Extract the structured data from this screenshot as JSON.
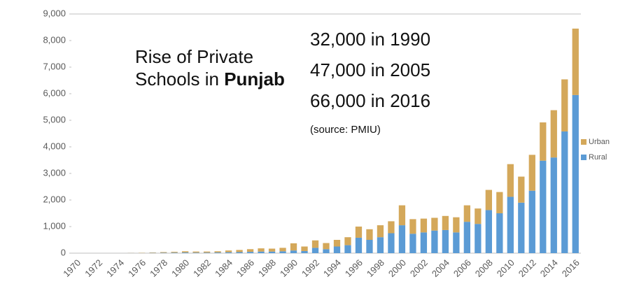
{
  "chart_data": {
    "type": "stacked_bar",
    "title": {
      "line1": "Rise of Private",
      "line2": "Schools in",
      "emphasis": "Punjab"
    },
    "annotations": [
      "32,000 in 1990",
      "47,000 in 2005",
      "66,000 in 2016",
      "(source: PMIU)"
    ],
    "categories": [
      "1970",
      null,
      "1972",
      null,
      "1974",
      null,
      "1976",
      null,
      "1978",
      null,
      "1980",
      null,
      "1982",
      null,
      "1984",
      null,
      "1986",
      null,
      "1988",
      null,
      "1990",
      null,
      "1992",
      null,
      "1994",
      null,
      "1996",
      null,
      "1998",
      null,
      "2000",
      null,
      "2002",
      null,
      "2004",
      null,
      "2006",
      null,
      "2008",
      null,
      "2010",
      null,
      "2012",
      null,
      "2014",
      null,
      "2016"
    ],
    "series": [
      {
        "name": "Rural",
        "color": "#5b9bd5",
        "values": [
          0,
          0,
          0,
          0,
          0,
          5,
          5,
          10,
          15,
          20,
          25,
          20,
          20,
          25,
          35,
          40,
          50,
          60,
          60,
          70,
          100,
          80,
          200,
          150,
          250,
          300,
          580,
          500,
          600,
          750,
          1050,
          730,
          780,
          850,
          870,
          780,
          1180,
          1100,
          1620,
          1500,
          2120,
          1900,
          2350,
          3480,
          3600,
          4580,
          5950
        ]
      },
      {
        "name": "Urban",
        "color": "#d4a85a",
        "values": [
          0,
          0,
          0,
          0,
          0,
          5,
          10,
          15,
          25,
          30,
          45,
          40,
          40,
          45,
          65,
          80,
          100,
          120,
          110,
          130,
          270,
          170,
          280,
          230,
          250,
          300,
          420,
          400,
          450,
          450,
          750,
          550,
          520,
          480,
          530,
          570,
          620,
          580,
          760,
          800,
          1230,
          980,
          1350,
          1440,
          1780,
          1960,
          2500
        ]
      }
    ],
    "ylim": [
      0,
      9000
    ],
    "yticks": [
      0,
      {
        "value": 1000,
        "label": "1,000"
      },
      {
        "value": 2000,
        "label": "2,000"
      },
      {
        "value": 3000,
        "label": "3,000"
      },
      {
        "value": 4000,
        "label": "4,000"
      },
      {
        "value": 5000,
        "label": "5,000"
      },
      {
        "value": 6000,
        "label": "6,000"
      },
      {
        "value": 7000,
        "label": "7,000"
      },
      {
        "value": 8000,
        "label": "8,000"
      },
      {
        "value": 9000,
        "label": "9,000"
      }
    ],
    "legend": "right"
  }
}
